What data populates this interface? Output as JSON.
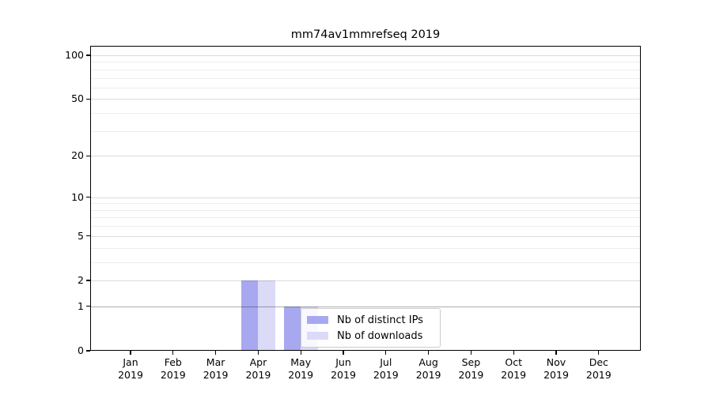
{
  "title": "mm74av1mmrefseq 2019",
  "chart_data": {
    "type": "bar",
    "title": "mm74av1mmrefseq 2019",
    "xlabel": "",
    "ylabel": "",
    "x_tick_labels": [
      {
        "month": "Jan",
        "year": "2019"
      },
      {
        "month": "Feb",
        "year": "2019"
      },
      {
        "month": "Mar",
        "year": "2019"
      },
      {
        "month": "Apr",
        "year": "2019"
      },
      {
        "month": "May",
        "year": "2019"
      },
      {
        "month": "Jun",
        "year": "2019"
      },
      {
        "month": "Jul",
        "year": "2019"
      },
      {
        "month": "Aug",
        "year": "2019"
      },
      {
        "month": "Sep",
        "year": "2019"
      },
      {
        "month": "Oct",
        "year": "2019"
      },
      {
        "month": "Nov",
        "year": "2019"
      },
      {
        "month": "Dec",
        "year": "2019"
      }
    ],
    "series": [
      {
        "name": "Nb of distinct IPs",
        "color": "#a8a8f0",
        "values": [
          0,
          0,
          0,
          2,
          1,
          0,
          0,
          0,
          0,
          0,
          0,
          0
        ]
      },
      {
        "name": "Nb of downloads",
        "color": "#dbdbf7",
        "values": [
          0,
          0,
          0,
          2,
          1,
          0,
          0,
          0,
          0,
          0,
          0,
          0
        ]
      }
    ],
    "yscale": "log1p",
    "ylim": [
      0,
      116
    ],
    "y_major_ticks": [
      0,
      1,
      2,
      5,
      10,
      20,
      50,
      100
    ],
    "y_minor_gridlines": [
      3,
      4,
      6,
      7,
      8,
      9,
      30,
      40,
      60,
      70,
      80,
      90
    ],
    "grid": true,
    "legend_position": "lower center"
  }
}
